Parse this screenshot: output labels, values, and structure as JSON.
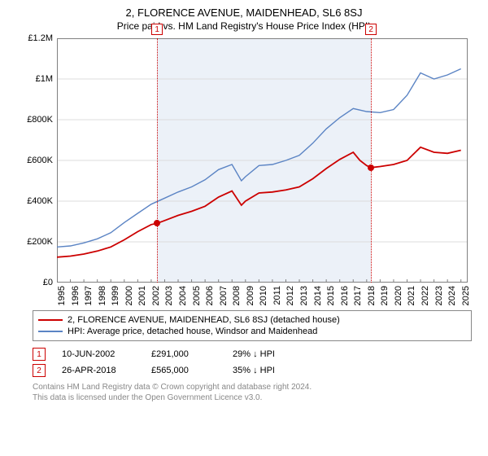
{
  "title": "2, FLORENCE AVENUE, MAIDENHEAD, SL6 8SJ",
  "subtitle": "Price paid vs. HM Land Registry's House Price Index (HPI)",
  "chart": {
    "type": "line",
    "background_color": "#ffffff",
    "grid_color": "#dcdcdc",
    "plot_border_color": "#808080",
    "x_range": [
      1995,
      2025.5
    ],
    "y_range": [
      0,
      1200000
    ],
    "y_ticks": [
      0,
      200000,
      400000,
      600000,
      800000,
      1000000,
      1200000
    ],
    "y_tick_labels": [
      "£0",
      "£200K",
      "£400K",
      "£600K",
      "£800K",
      "£1M",
      "£1.2M"
    ],
    "x_ticks": [
      1995,
      1996,
      1997,
      1998,
      1999,
      2000,
      2001,
      2002,
      2003,
      2004,
      2005,
      2006,
      2007,
      2008,
      2009,
      2010,
      2011,
      2012,
      2013,
      2014,
      2015,
      2016,
      2017,
      2018,
      2019,
      2020,
      2021,
      2022,
      2023,
      2024,
      2025
    ],
    "x_tick_labels": [
      "1995",
      "1996",
      "1997",
      "1998",
      "1999",
      "2000",
      "2001",
      "2002",
      "2003",
      "2004",
      "2005",
      "2006",
      "2007",
      "2008",
      "2009",
      "2010",
      "2011",
      "2012",
      "2013",
      "2014",
      "2015",
      "2016",
      "2017",
      "2018",
      "2019",
      "2020",
      "2021",
      "2022",
      "2023",
      "2024",
      "2025"
    ],
    "shaded_region_x": [
      2002.44,
      2018.32
    ],
    "tick_fontsize": 11,
    "series": [
      {
        "name": "property",
        "label": "2, FLORENCE AVENUE, MAIDENHEAD, SL6 8SJ (detached house)",
        "color": "#cc0000",
        "line_width": 1.8,
        "data": [
          [
            1995,
            125000
          ],
          [
            1996,
            130000
          ],
          [
            1997,
            140000
          ],
          [
            1998,
            155000
          ],
          [
            1999,
            175000
          ],
          [
            2000,
            210000
          ],
          [
            2001,
            250000
          ],
          [
            2002,
            285000
          ],
          [
            2002.44,
            291000
          ],
          [
            2003,
            305000
          ],
          [
            2004,
            330000
          ],
          [
            2005,
            350000
          ],
          [
            2006,
            375000
          ],
          [
            2007,
            420000
          ],
          [
            2008,
            450000
          ],
          [
            2008.7,
            380000
          ],
          [
            2009,
            400000
          ],
          [
            2010,
            440000
          ],
          [
            2011,
            445000
          ],
          [
            2012,
            455000
          ],
          [
            2013,
            470000
          ],
          [
            2014,
            510000
          ],
          [
            2015,
            560000
          ],
          [
            2016,
            605000
          ],
          [
            2017,
            640000
          ],
          [
            2017.5,
            600000
          ],
          [
            2018,
            575000
          ],
          [
            2018.32,
            565000
          ],
          [
            2019,
            570000
          ],
          [
            2020,
            580000
          ],
          [
            2021,
            600000
          ],
          [
            2022,
            665000
          ],
          [
            2023,
            640000
          ],
          [
            2024,
            635000
          ],
          [
            2025,
            650000
          ]
        ]
      },
      {
        "name": "hpi",
        "label": "HPI: Average price, detached house, Windsor and Maidenhead",
        "color": "#5b84c4",
        "line_width": 1.4,
        "data": [
          [
            1995,
            175000
          ],
          [
            1996,
            180000
          ],
          [
            1997,
            195000
          ],
          [
            1998,
            215000
          ],
          [
            1999,
            245000
          ],
          [
            2000,
            295000
          ],
          [
            2001,
            340000
          ],
          [
            2002,
            385000
          ],
          [
            2003,
            415000
          ],
          [
            2004,
            445000
          ],
          [
            2005,
            470000
          ],
          [
            2006,
            505000
          ],
          [
            2007,
            555000
          ],
          [
            2008,
            580000
          ],
          [
            2008.7,
            500000
          ],
          [
            2009,
            520000
          ],
          [
            2010,
            575000
          ],
          [
            2011,
            580000
          ],
          [
            2012,
            600000
          ],
          [
            2013,
            625000
          ],
          [
            2014,
            685000
          ],
          [
            2015,
            755000
          ],
          [
            2016,
            810000
          ],
          [
            2017,
            855000
          ],
          [
            2018,
            840000
          ],
          [
            2019,
            835000
          ],
          [
            2020,
            850000
          ],
          [
            2021,
            920000
          ],
          [
            2022,
            1030000
          ],
          [
            2023,
            1000000
          ],
          [
            2024,
            1020000
          ],
          [
            2025,
            1050000
          ]
        ]
      }
    ],
    "markers": [
      {
        "id": "1",
        "x": 2002.44,
        "y": 291000,
        "color": "#cc0000",
        "box_color": "#cc0000"
      },
      {
        "id": "2",
        "x": 2018.32,
        "y": 565000,
        "color": "#cc0000",
        "box_color": "#cc0000"
      }
    ]
  },
  "legend": {
    "items": [
      {
        "color": "#cc0000",
        "label": "2, FLORENCE AVENUE, MAIDENHEAD, SL6 8SJ (detached house)"
      },
      {
        "color": "#5b84c4",
        "label": "HPI: Average price, detached house, Windsor and Maidenhead"
      }
    ]
  },
  "sales_table": {
    "rows": [
      {
        "id": "1",
        "box_color": "#cc0000",
        "date": "10-JUN-2002",
        "price": "£291,000",
        "delta": "29% ↓ HPI"
      },
      {
        "id": "2",
        "box_color": "#cc0000",
        "date": "26-APR-2018",
        "price": "£565,000",
        "delta": "35% ↓ HPI"
      }
    ]
  },
  "attribution": {
    "line1": "Contains HM Land Registry data © Crown copyright and database right 2024.",
    "line2": "This data is licensed under the Open Government Licence v3.0."
  }
}
